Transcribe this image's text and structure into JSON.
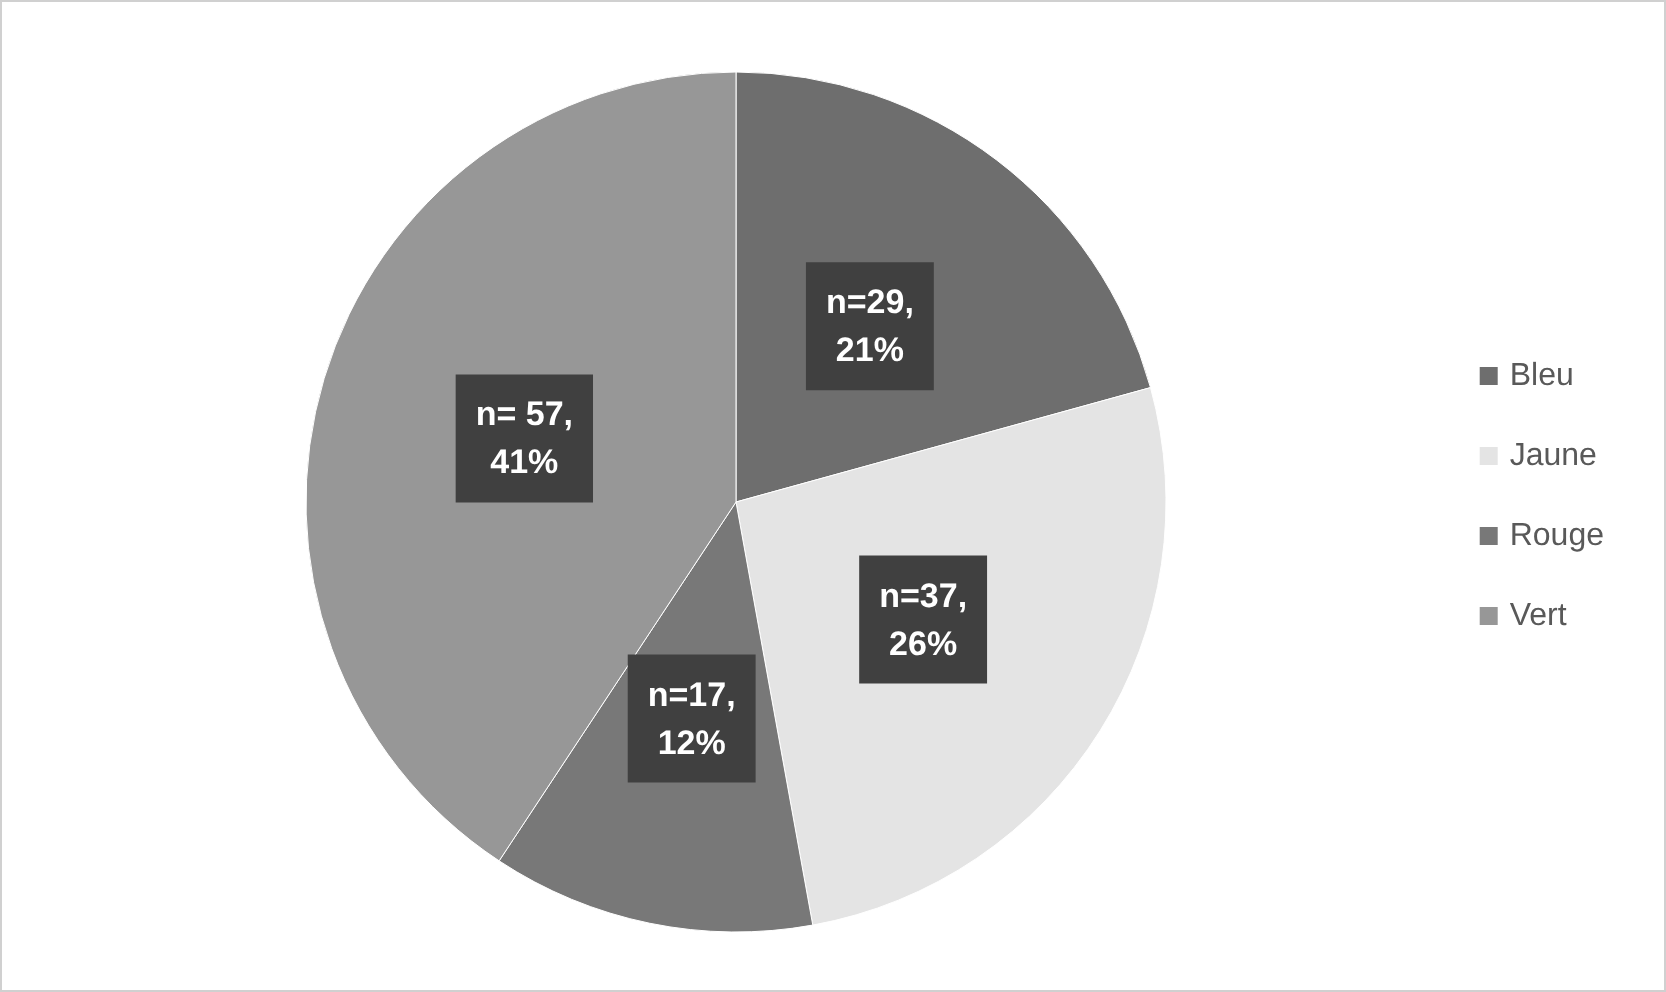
{
  "chart_data": {
    "type": "pie",
    "categories": [
      "Bleu",
      "Jaune",
      "Rouge",
      "Vert"
    ],
    "values": [
      29,
      37,
      17,
      57
    ],
    "colors": [
      "#6e6e6e",
      "#e4e4e4",
      "#787878",
      "#979797"
    ],
    "value_labels": [
      "n=29, 21%",
      "n=37, 26%",
      "n=17, 12%",
      "n= 57, 41%"
    ],
    "legend": "right"
  }
}
